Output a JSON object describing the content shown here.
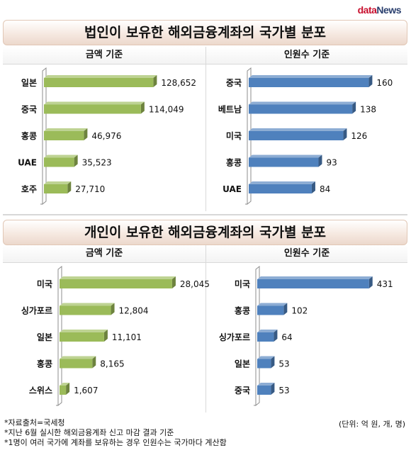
{
  "logo": {
    "part1": "data",
    "part2": "News"
  },
  "panels": [
    {
      "title": "법인이 보유한 해외금융계좌의 국가별 분포",
      "charts": [
        {
          "heading": "금액 기준",
          "type": "bar",
          "orientation": "horizontal",
          "color": "#9bbb59",
          "categories": [
            "일본",
            "중국",
            "홍콩",
            "UAE",
            "호주"
          ],
          "values": [
            128652,
            114049,
            46976,
            35523,
            27710
          ],
          "labels": [
            "128,652",
            "114,049",
            "46,976",
            "35,523",
            "27,710"
          ],
          "xlim": [
            0,
            135000
          ]
        },
        {
          "heading": "인원수 기준",
          "type": "bar",
          "orientation": "horizontal",
          "color": "#4f81bd",
          "categories": [
            "중국",
            "베트남",
            "미국",
            "홍콩",
            "UAE"
          ],
          "values": [
            160,
            138,
            126,
            93,
            84
          ],
          "labels": [
            "160",
            "138",
            "126",
            "93",
            "84"
          ],
          "xlim": [
            0,
            170
          ]
        }
      ]
    },
    {
      "title": "개인이 보유한 해외금융계좌의 국가별 분포",
      "charts": [
        {
          "heading": "금액 기준",
          "type": "bar",
          "orientation": "horizontal",
          "color": "#9bbb59",
          "categories": [
            "미국",
            "싱가포르",
            "일본",
            "홍콩",
            "스위스"
          ],
          "values": [
            28045,
            12804,
            11101,
            8165,
            1607
          ],
          "labels": [
            "28,045",
            "12,804",
            "11,101",
            "8,165",
            "1,607"
          ],
          "xlim": [
            0,
            30000
          ]
        },
        {
          "heading": "인원수 기준",
          "type": "bar",
          "orientation": "horizontal",
          "color": "#4f81bd",
          "categories": [
            "미국",
            "홍콩",
            "싱가포르",
            "일본",
            "중국"
          ],
          "values": [
            431,
            102,
            64,
            53,
            53
          ],
          "labels": [
            "431",
            "102",
            "64",
            "53",
            "53"
          ],
          "xlim": [
            0,
            470
          ]
        }
      ]
    }
  ],
  "footer": {
    "notes": [
      "*자료출처=국세청",
      "*지난 6월 실시한 해외금융계좌 신고 마감 결과 기준",
      "*1명이 여러 국가에 계좌를 보유하는 경우 인원수는 국가마다 계산함"
    ],
    "units": "(단위: 억 원, 개, 명)"
  },
  "chart_data": [
    {
      "type": "bar",
      "title": "법인이 보유한 해외금융계좌의 국가별 분포 - 금액 기준",
      "categories": [
        "일본",
        "중국",
        "홍콩",
        "UAE",
        "호주"
      ],
      "values": [
        128652,
        114049,
        46976,
        35523,
        27710
      ]
    },
    {
      "type": "bar",
      "title": "법인이 보유한 해외금융계좌의 국가별 분포 - 인원수 기준",
      "categories": [
        "중국",
        "베트남",
        "미국",
        "홍콩",
        "UAE"
      ],
      "values": [
        160,
        138,
        126,
        93,
        84
      ]
    },
    {
      "type": "bar",
      "title": "개인이 보유한 해외금융계좌의 국가별 분포 - 금액 기준",
      "categories": [
        "미국",
        "싱가포르",
        "일본",
        "홍콩",
        "스위스"
      ],
      "values": [
        28045,
        12804,
        11101,
        8165,
        1607
      ]
    },
    {
      "type": "bar",
      "title": "개인이 보유한 해외금융계좌의 국가별 분포 - 인원수 기준",
      "categories": [
        "미국",
        "홍콩",
        "싱가포르",
        "일본",
        "중국"
      ],
      "values": [
        431,
        102,
        64,
        53,
        53
      ]
    }
  ]
}
